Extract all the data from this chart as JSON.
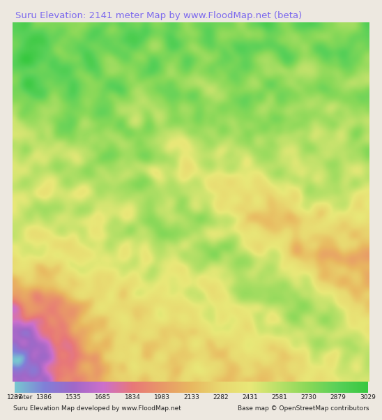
{
  "title": "Suru Elevation: 2141 meter Map by www.FloodMap.net (beta)",
  "title_color": "#7b68ee",
  "title_fontsize": 9.5,
  "bg_color": "#ede8e0",
  "colorbar_values": [
    1237,
    1386,
    1535,
    1685,
    1834,
    1983,
    2133,
    2282,
    2431,
    2581,
    2730,
    2879,
    3029
  ],
  "colorbar_colors": [
    "#78c8d0",
    "#8080d8",
    "#a068c8",
    "#cc70cc",
    "#e87878",
    "#e89868",
    "#e8b860",
    "#e8d870",
    "#e8e878",
    "#b8e068",
    "#88d858",
    "#58d058",
    "#38c840"
  ],
  "footer_left": "Suru Elevation Map developed by www.FloodMap.net",
  "footer_right": "Base map © OpenStreetMap contributors",
  "footer_fontsize": 6.5
}
